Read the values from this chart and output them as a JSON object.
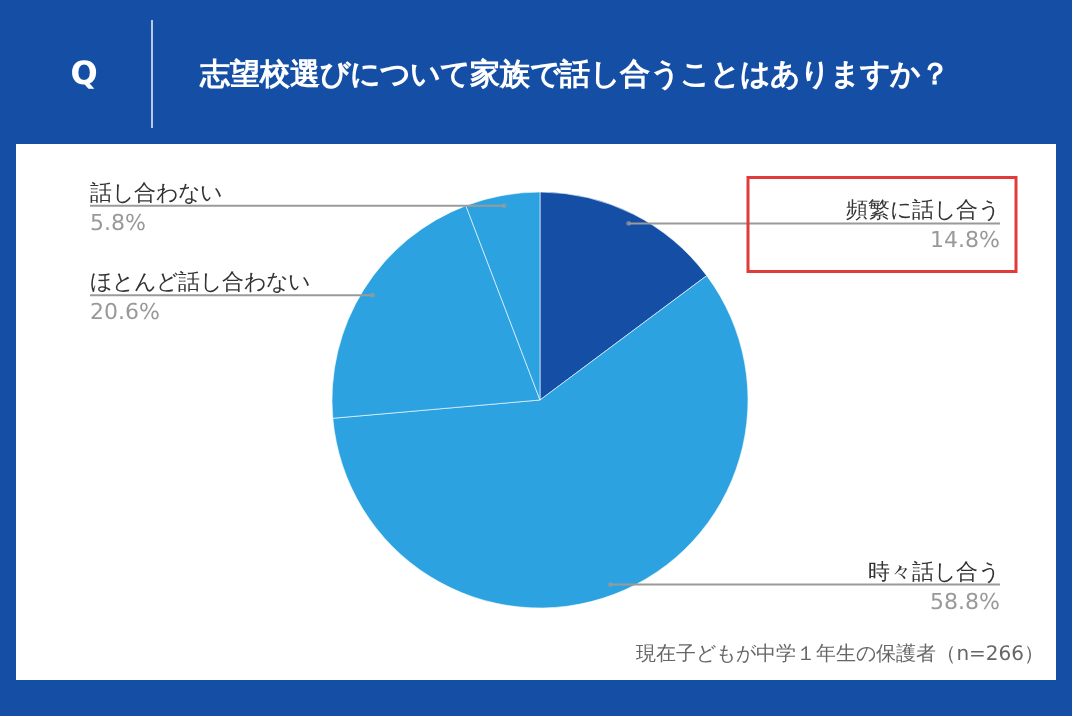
{
  "chart_data": {
    "type": "pie",
    "title": "志望校選びについて家族で話し合うことはありますか？",
    "categories": [
      "頻繁に話し合う",
      "時々話し合う",
      "ほとんど話し合わない",
      "話し合わない"
    ],
    "values": [
      14.8,
      58.8,
      20.6,
      5.8
    ],
    "value_labels": [
      "14.8%",
      "58.8%",
      "20.6%",
      "5.8%"
    ],
    "colors": [
      "#154ea5",
      "#2ca3e0",
      "#2ca3e0",
      "#2ca3e0"
    ],
    "annotations": [
      "Q",
      "現在子どもが中学１年生の保護者（n=266）"
    ]
  }
}
